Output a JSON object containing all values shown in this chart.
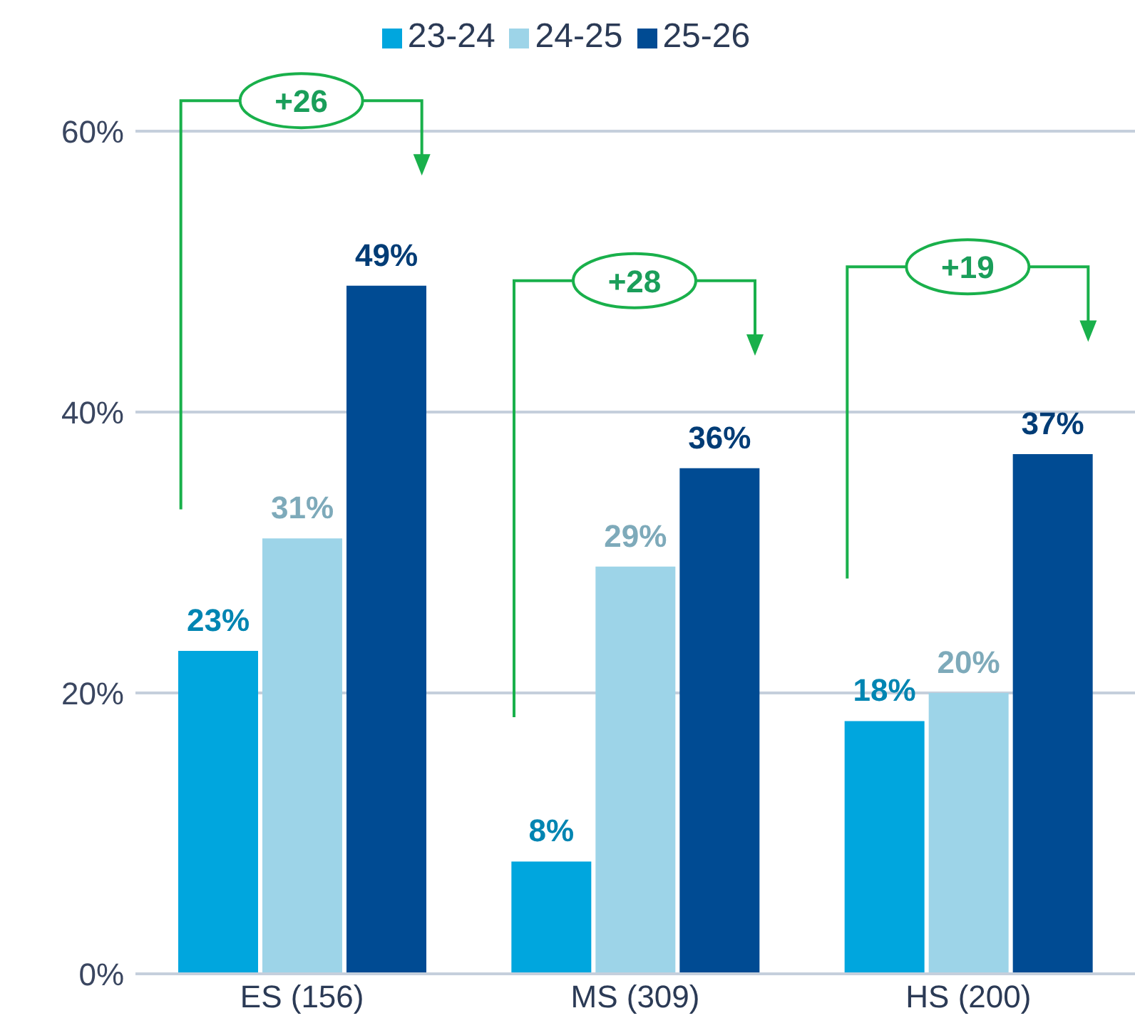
{
  "chart_data": {
    "type": "bar",
    "categories": [
      "ES (156)",
      "MS (309)",
      "HS (200)"
    ],
    "series": [
      {
        "name": "23-24",
        "color": "#00a6de",
        "values": [
          23,
          8,
          18
        ],
        "value_labels": [
          "23%",
          "8%",
          "18%"
        ]
      },
      {
        "name": "24-25",
        "color": "#9dd4e8",
        "values": [
          31,
          29,
          20
        ],
        "value_labels": [
          "31%",
          "29%",
          "20%"
        ]
      },
      {
        "name": "25-26",
        "color": "#004b93",
        "values": [
          49,
          36,
          37
        ],
        "value_labels": [
          "49%",
          "36%",
          "37%"
        ]
      }
    ],
    "ylim": [
      0,
      60
    ],
    "yticks": [
      {
        "value": 0,
        "label": "0%"
      },
      {
        "value": 20,
        "label": "20%"
      },
      {
        "value": 40,
        "label": "40%"
      },
      {
        "value": 60,
        "label": "60%"
      }
    ],
    "grid": "y",
    "legend": "top",
    "annotations": [
      "+26",
      "+28",
      "+19"
    ]
  }
}
